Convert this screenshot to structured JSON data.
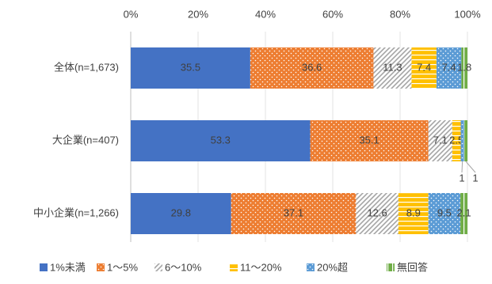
{
  "chart_data": {
    "type": "stacked-bar-horizontal",
    "categories": [
      "全体(n=1,673)",
      "大企業(n=407)",
      "中小企業(n=1,266)"
    ],
    "series": [
      {
        "name": "1%未満",
        "color": "#4472c4",
        "pattern": "solid",
        "values": [
          35.5,
          53.3,
          29.8
        ]
      },
      {
        "name": "1～5%",
        "color": "#ed7d31",
        "pattern": "dots",
        "values": [
          36.6,
          35.1,
          37.1
        ]
      },
      {
        "name": "6～10%",
        "color": "#a5a5a5",
        "pattern": "hatch",
        "values": [
          11.3,
          7.1,
          12.6
        ]
      },
      {
        "name": "11～20%",
        "color": "#ffc000",
        "pattern": "hlines",
        "values": [
          7.4,
          2.5,
          8.9
        ]
      },
      {
        "name": "20%超",
        "color": "#5b9bd5",
        "pattern": "dots",
        "values": [
          7.4,
          1,
          9.5
        ]
      },
      {
        "name": "無回答",
        "color": "#70ad47",
        "pattern": "vlines",
        "values": [
          1.8,
          1,
          2.1
        ]
      }
    ],
    "xlim": [
      0,
      100
    ],
    "xticks": [
      {
        "value": 0,
        "label": "0%"
      },
      {
        "value": 20,
        "label": "20%"
      },
      {
        "value": 40,
        "label": "40%"
      },
      {
        "value": 60,
        "label": "60%"
      },
      {
        "value": 80,
        "label": "80%"
      },
      {
        "value": 100,
        "label": "100%"
      }
    ],
    "grid": true,
    "legend": "bottom"
  }
}
